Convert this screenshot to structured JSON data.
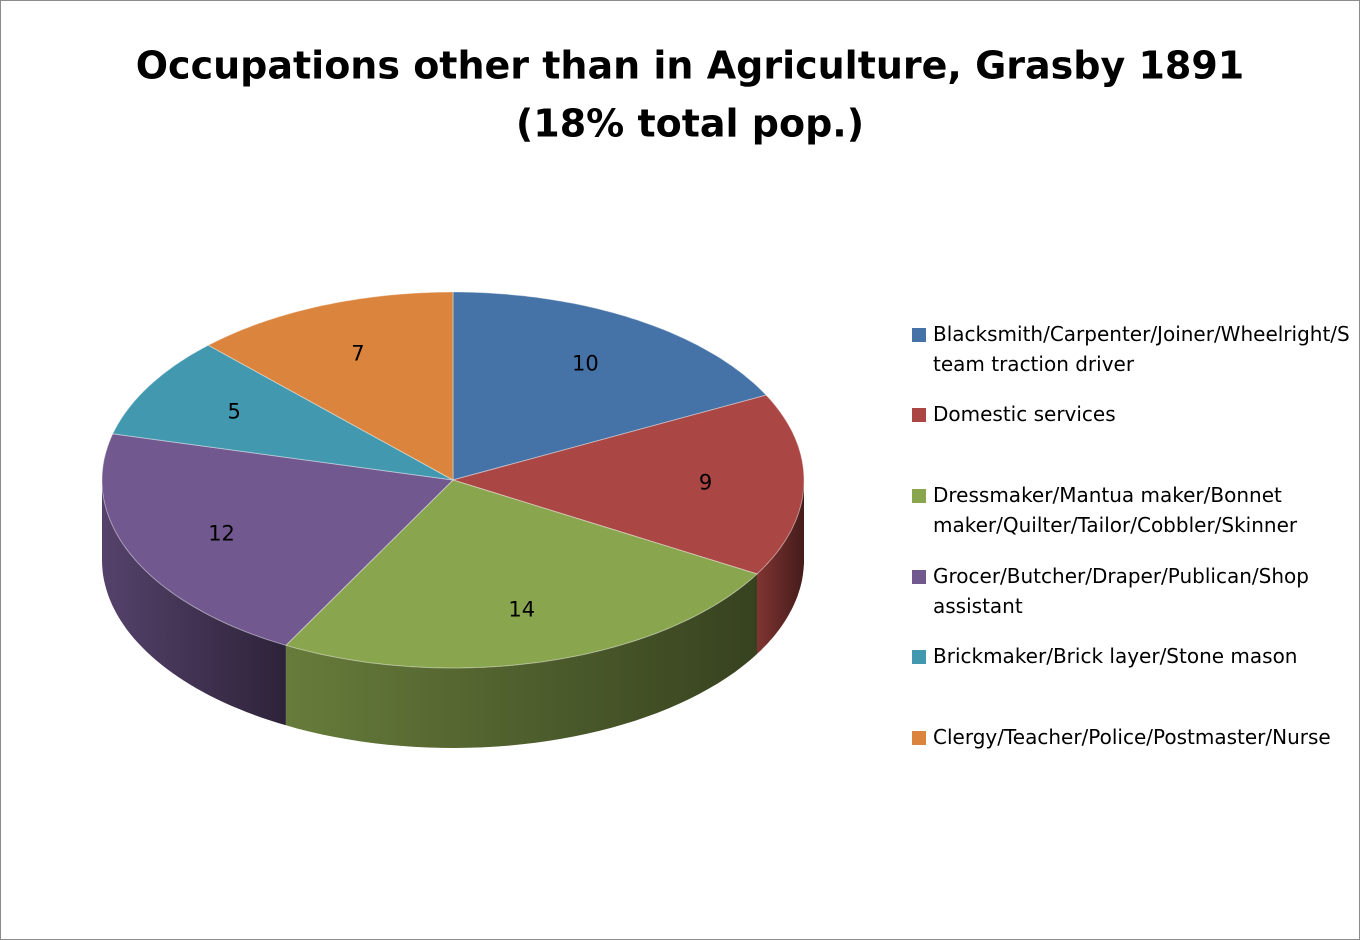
{
  "chart_data": {
    "type": "pie3d",
    "title": "Occupations other than in Agriculture, Grasby 1891",
    "subtitle": "(18% total pop.)",
    "categories": [
      "Blacksmith/Carpenter/Joiner/Wheelright/Steam traction driver",
      "Domestic services",
      "Dressmaker/Mantua maker/Bonnet maker/Quilter/Tailor/Cobbler/Skinner",
      "Grocer/Butcher/Draper/Publican/Shop assistant",
      "Brickmaker/Brick layer/Stone mason",
      "Clergy/Teacher/Police/Postmaster/Nurse"
    ],
    "values": [
      10,
      9,
      14,
      12,
      5,
      7
    ],
    "colors": [
      "#4572a7",
      "#aa4643",
      "#89a54e",
      "#71588f",
      "#4198af",
      "#db843d"
    ],
    "legend": "right"
  }
}
